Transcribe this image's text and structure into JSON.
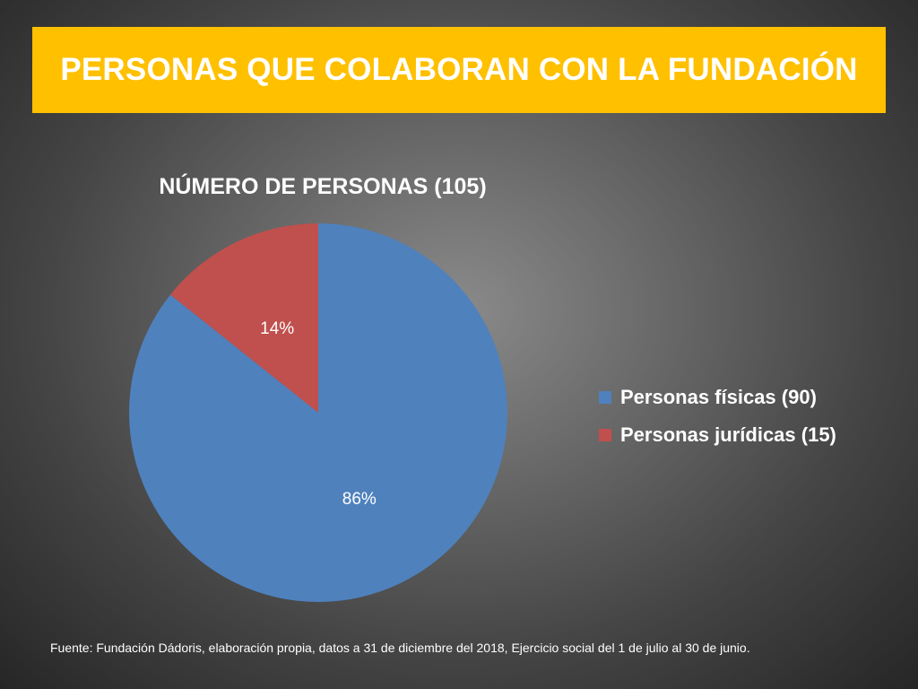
{
  "header": {
    "title": "PERSONAS QUE COLABORAN CON LA FUNDACIÓN"
  },
  "colors": {
    "banner": "#ffc000",
    "personas_fisicas": "#4f81bd",
    "personas_juridicas": "#c0504d"
  },
  "chart_data": {
    "type": "pie",
    "title": "NÚMERO DE PERSONAS (105)",
    "slices": [
      {
        "label": "Personas físicas (90)",
        "value": 90,
        "percent_label": "86%",
        "color": "#4f81bd"
      },
      {
        "label": "Personas jurídicas (15)",
        "value": 15,
        "percent_label": "14%",
        "color": "#c0504d"
      }
    ],
    "legend_position": "right"
  },
  "footnote": "Fuente: Fundación Dádoris, elaboración propia, datos a 31 de diciembre del 2018, Ejercicio social del 1 de julio al 30 de junio."
}
